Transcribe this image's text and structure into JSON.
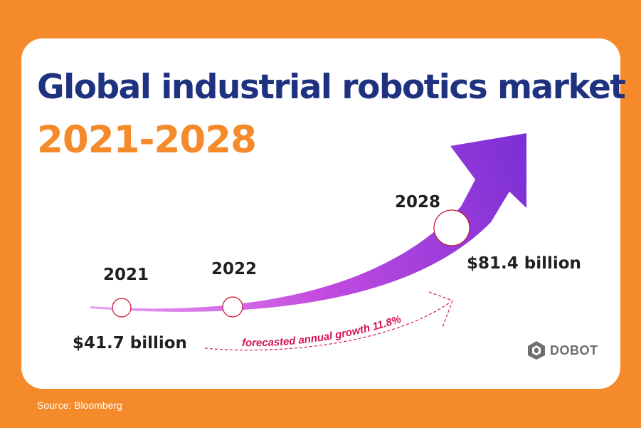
{
  "title": "Global industrial robotics market",
  "subtitle": "2021-2028",
  "source": "Source: Bloomberg",
  "brand": "DOBOT",
  "colors": {
    "background": "#F58A2A",
    "title": "#1F3280",
    "subtitle": "#F58A2A",
    "arrow_start": "#E8A0F2",
    "arrow_end": "#7A2FD6",
    "growth_text": "#D4145A",
    "marker_stroke": "#C8102E"
  },
  "chart_data": {
    "type": "line",
    "title": "Global industrial robotics market",
    "subtitle": "2021-2028",
    "points": [
      {
        "year": "2021",
        "value_label": "$41.7 billion",
        "value": 41.7
      },
      {
        "year": "2022",
        "value_label": "",
        "value": null
      },
      {
        "year": "2028",
        "value_label": "$81.4 billion",
        "value": 81.4
      }
    ],
    "annotation": "forecasted annual growth 11.8%",
    "unit": "billion USD",
    "grid": false,
    "legend": "none"
  }
}
